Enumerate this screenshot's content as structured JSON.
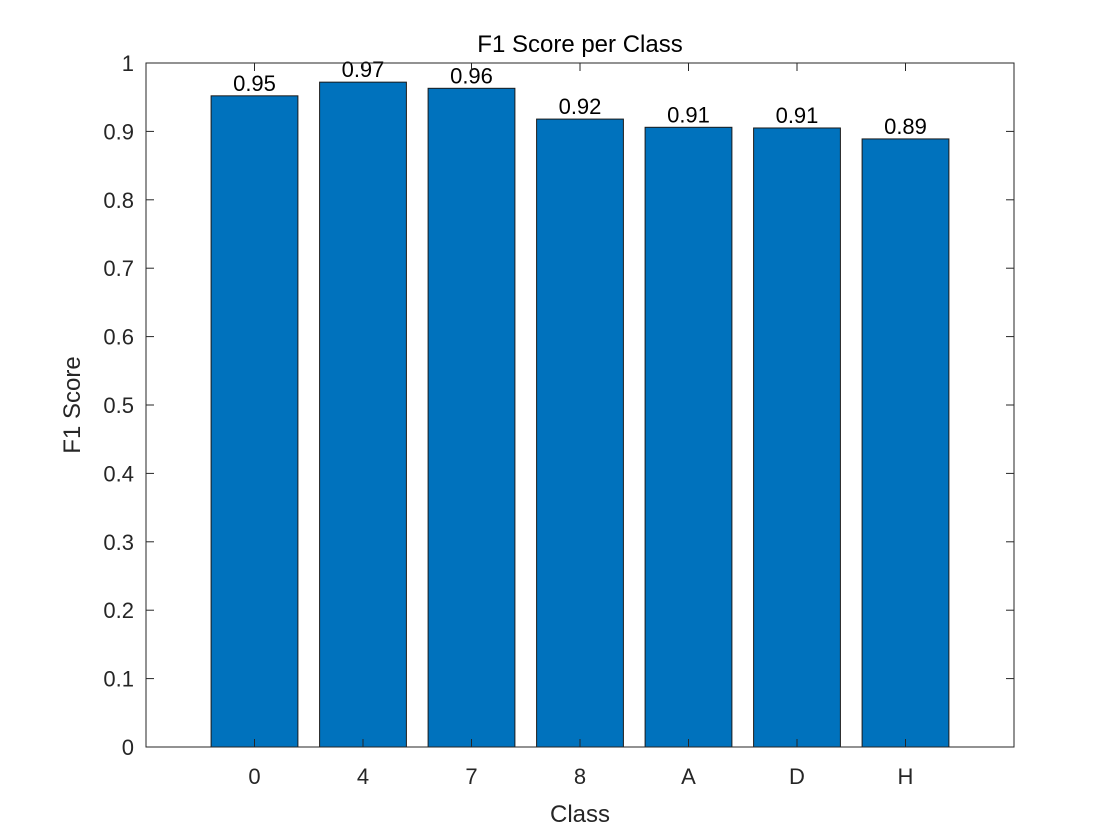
{
  "chart_data": {
    "type": "bar",
    "title": "F1 Score per Class",
    "xlabel": "Class",
    "ylabel": "F1 Score",
    "categories": [
      "0",
      "4",
      "7",
      "8",
      "A",
      "D",
      "H"
    ],
    "values": [
      0.952,
      0.972,
      0.963,
      0.918,
      0.906,
      0.905,
      0.889
    ],
    "data_labels": [
      "0.95",
      "0.97",
      "0.96",
      "0.92",
      "0.91",
      "0.91",
      "0.89"
    ],
    "ylim": [
      0,
      1
    ],
    "yticks": [
      0,
      0.1,
      0.2,
      0.3,
      0.4,
      0.5,
      0.6,
      0.7,
      0.8,
      0.9,
      1
    ],
    "ytick_labels": [
      "0",
      "0.1",
      "0.2",
      "0.3",
      "0.4",
      "0.5",
      "0.6",
      "0.7",
      "0.8",
      "0.9",
      "1"
    ],
    "grid": false,
    "legend": "none",
    "bar_color": "#0072BD"
  }
}
